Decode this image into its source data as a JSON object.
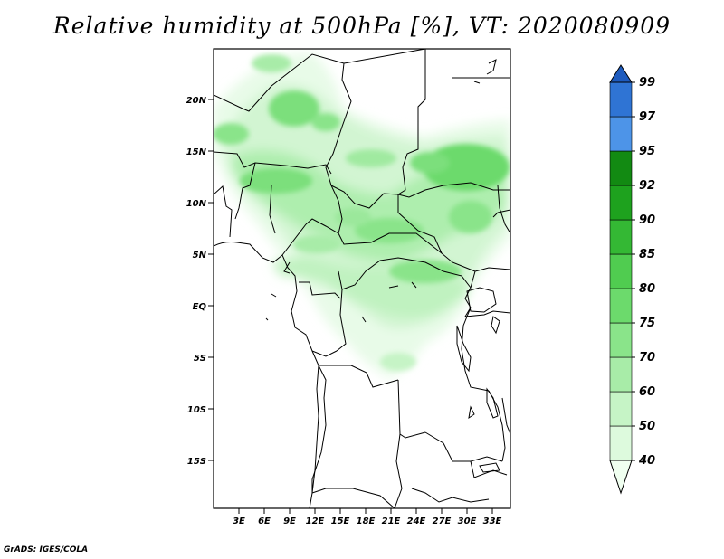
{
  "title": "Relative humidity at 500hPa [%], VT: 2020080909",
  "credit": "GrADS: IGES/COLA",
  "map": {
    "variable": "Relative humidity",
    "level": "500hPa",
    "units": "%",
    "valid_time": "2020080909",
    "lon_range": [
      0,
      35
    ],
    "lat_range": [
      -20,
      25
    ],
    "lat_labels": [
      "20N",
      "15N",
      "10N",
      "5N",
      "EQ",
      "5S",
      "10S",
      "15S"
    ],
    "lon_labels": [
      "3E",
      "6E",
      "9E",
      "12E",
      "15E",
      "18E",
      "21E",
      "24E",
      "27E",
      "30E",
      "33E"
    ]
  },
  "colorbar": {
    "levels": [
      "40",
      "50",
      "60",
      "70",
      "75",
      "80",
      "85",
      "90",
      "92",
      "95",
      "97",
      "99"
    ],
    "colors": [
      "#f0fff0",
      "#ddfadd",
      "#c6f4c6",
      "#a8eca8",
      "#8ae48a",
      "#6cda6c",
      "#50cc50",
      "#34b834",
      "#1ea21e",
      "#128a12",
      "#4d94e8",
      "#2f74d4",
      "#1e5bbe"
    ]
  }
}
